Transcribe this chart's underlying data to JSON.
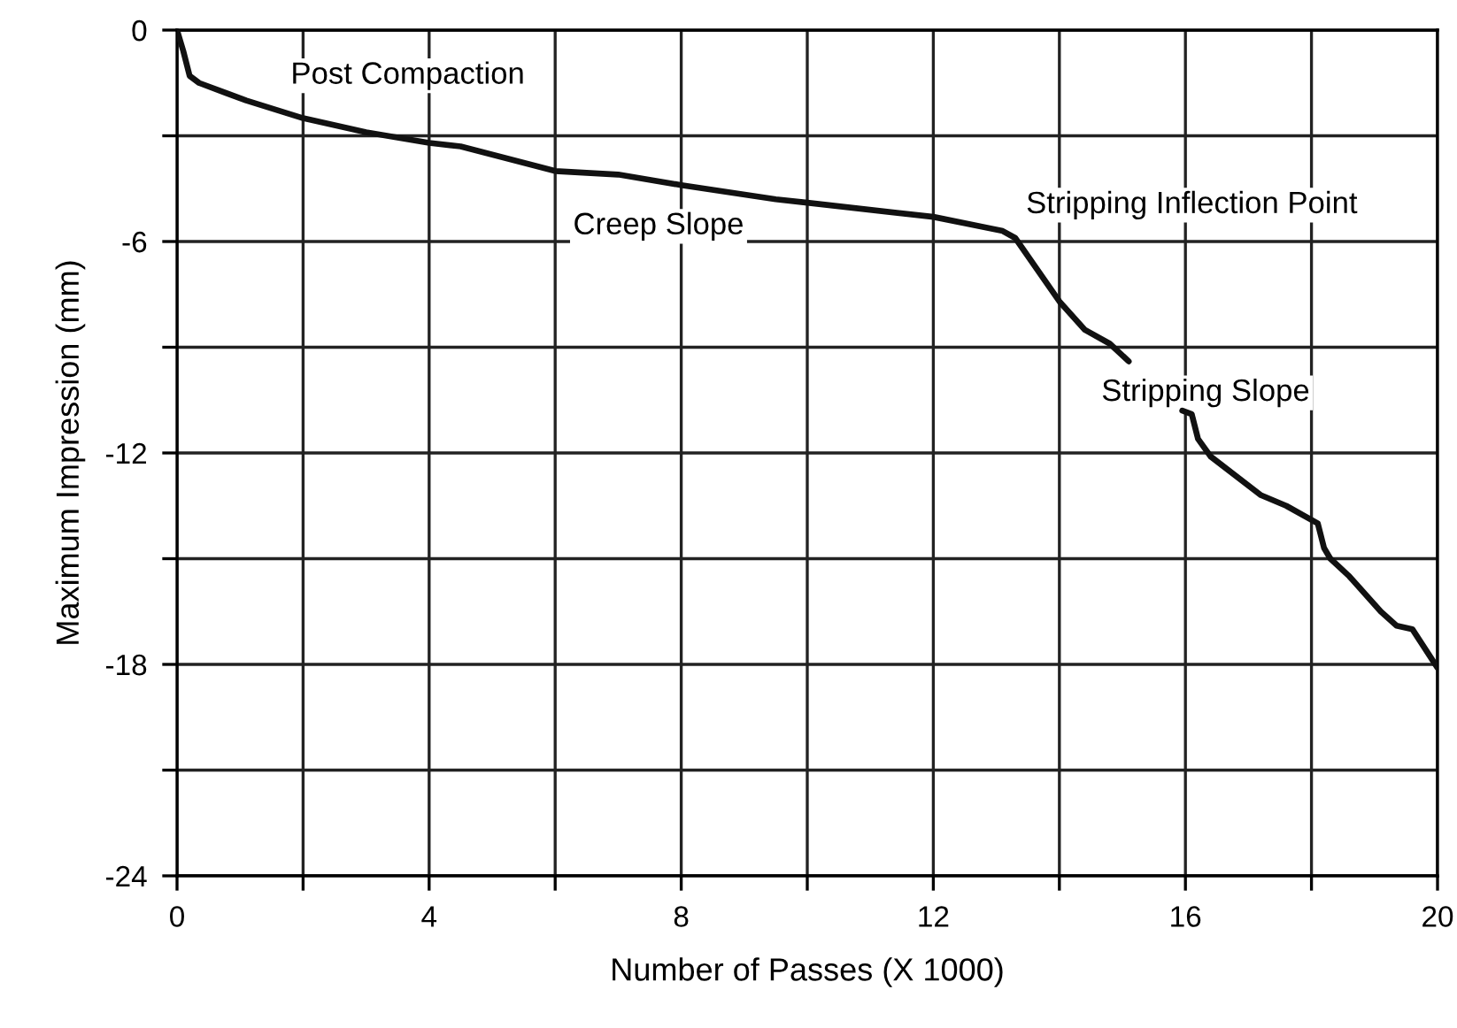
{
  "chart_data": {
    "type": "line",
    "xlabel": "Number of Passes (X 1000)",
    "ylabel": "Maximum Impression (mm)",
    "series": [
      {
        "color": "#111111",
        "x": [
          0,
          0.1,
          0.2,
          0.35,
          1.1,
          2,
          3,
          4,
          4.5,
          6,
          7,
          8,
          9.5,
          10,
          12,
          13.1,
          13.3,
          14,
          14.4,
          14.8,
          15.1,
          15.5,
          15.95,
          16.1,
          16.2,
          16.4,
          17.2,
          17.6,
          18.1,
          18.2,
          18.3,
          18.6,
          19.1,
          19.35,
          19.6,
          20
        ],
        "values": [
          0,
          -0.6,
          -1.3,
          -1.5,
          -2.0,
          -2.5,
          -2.9,
          -3.2,
          -3.3,
          -4.0,
          -4.1,
          -4.4,
          -4.8,
          -4.9,
          -5.3,
          -5.7,
          -5.9,
          -7.7,
          -8.5,
          -8.9,
          -9.4,
          null,
          -10.8,
          -10.9,
          -11.6,
          -12.1,
          -13.2,
          -13.5,
          -14.0,
          -14.7,
          -15.0,
          -15.5,
          -16.5,
          -16.9,
          -17.0,
          -18.1
        ]
      }
    ],
    "annotations": [
      "Post Compaction",
      "Creep Slope",
      "Stripping Inflection Point",
      "Stripping Slope"
    ],
    "xlim": [
      0,
      20
    ],
    "ylim": [
      -24,
      0
    ],
    "xticks": [
      0,
      {
        "value": 2,
        "label": null
      },
      4,
      {
        "value": 6,
        "label": null
      },
      8,
      {
        "value": 10,
        "label": null
      },
      12,
      {
        "value": 14,
        "label": null
      },
      16,
      {
        "value": 18,
        "label": null
      },
      20
    ],
    "yticks": [
      0,
      {
        "value": -3,
        "label": null
      },
      -6,
      {
        "value": -9,
        "label": null
      },
      -12,
      {
        "value": -15,
        "label": null
      },
      -18,
      {
        "value": -21,
        "label": null
      },
      -24
    ],
    "grid": true,
    "line_style": "solid",
    "marker": "none"
  }
}
